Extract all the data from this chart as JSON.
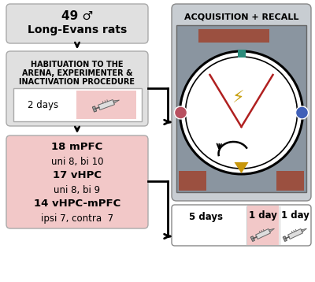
{
  "bg_color": "#ffffff",
  "light_gray": "#e0e0e0",
  "medium_gray": "#9aa5b0",
  "pink_light": "#f2c8c8",
  "brown_dark": "#9b5040",
  "teal": "#2a8a7a",
  "blue_dot": "#4060b8",
  "pink_dot": "#b85060",
  "yellow_tri": "#c8960a",
  "red_zone": "#b02020",
  "title_rats": "49 ♂",
  "subtitle_rats": "Long-Evans rats",
  "hab_line1": "HABITUATION TO THE",
  "hab_line2": "ARENA, EXPERIMENTER &",
  "hab_line3": "INACTIVATION PROCEDURE",
  "two_days": "2 days",
  "grp1_bold": "18 mPFC",
  "grp1_norm": "uni 8, bi 10",
  "grp2_bold": "17 vHPC",
  "grp2_norm": "uni 8, bi 9",
  "grp3_bold": "14 vHPC-mPFC",
  "grp3_norm": "ipsi 7, contra  7",
  "acq_recall": "ACQUISITION + RECALL",
  "days5": "5 days",
  "day1a": "1 day",
  "day1b": "1 day"
}
